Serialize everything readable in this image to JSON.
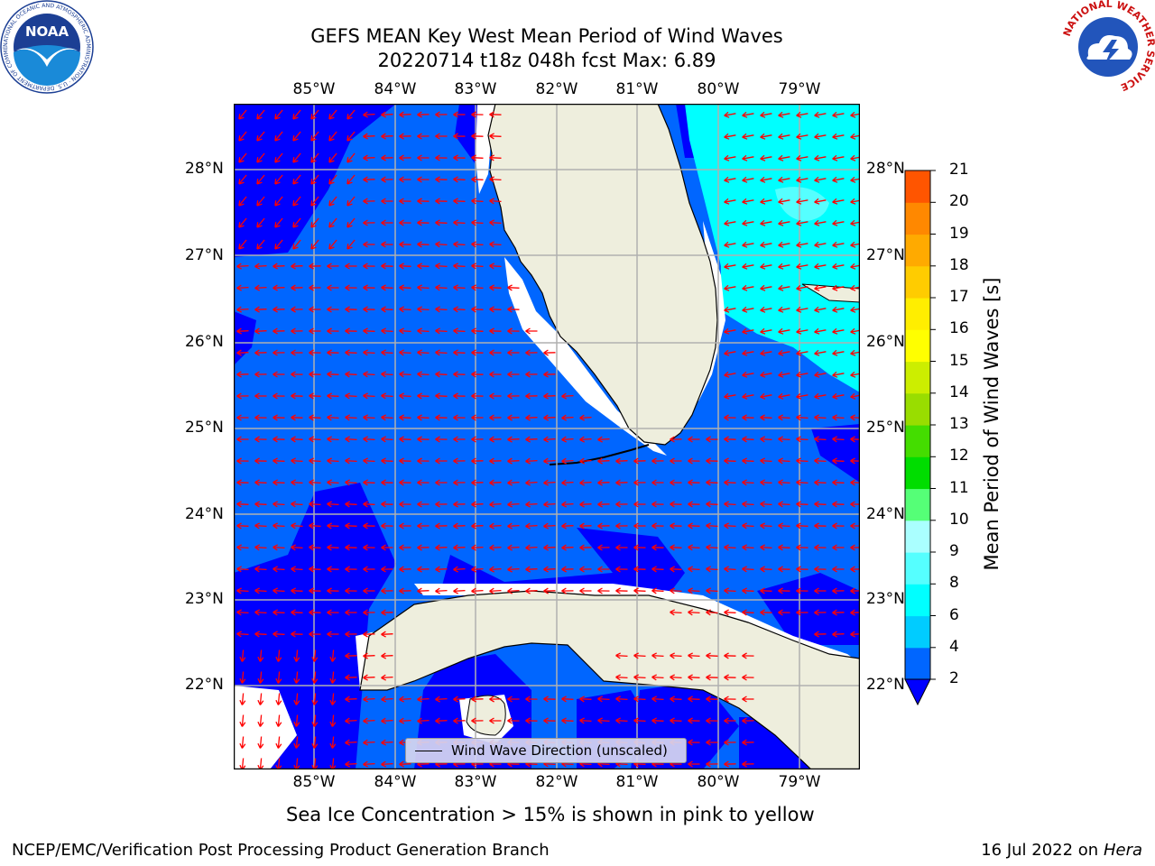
{
  "title": {
    "line1": "GEFS MEAN Key West Mean Period of Wind Waves",
    "line2": "20220714 t18z 048h fcst   Max: 6.89"
  },
  "map": {
    "lon_labels": [
      "85°W",
      "84°W",
      "83°W",
      "82°W",
      "81°W",
      "80°W",
      "79°W"
    ],
    "lat_labels": [
      "28°N",
      "27°N",
      "26°N",
      "25°N",
      "24°N",
      "23°N",
      "22°N"
    ],
    "colors": {
      "land": "#eeeedd",
      "open_no_data": "#ffffff",
      "band_2_4": "#0066ff",
      "band_below_2": "#0000ff",
      "band_4_6": "#00ffff",
      "band_6_8": "#55ffff",
      "arrow": "#ff0000",
      "grid": "#b0b0b0",
      "coast": "#000000"
    }
  },
  "legend": {
    "label": "Wind Wave Direction (unscaled)"
  },
  "colorbar": {
    "label": "Mean Period of Wind Waves [s]",
    "ticks": [
      "2",
      "4",
      "6",
      "8",
      "9",
      "10",
      "11",
      "12",
      "13",
      "14",
      "15",
      "16",
      "17",
      "18",
      "19",
      "20",
      "21"
    ],
    "segment_colors": [
      "#0066ff",
      "#00ccff",
      "#00ffff",
      "#55ffff",
      "#aaffff",
      "#55ff77",
      "#00dd00",
      "#44dd00",
      "#99dd00",
      "#ccee00",
      "#ffff00",
      "#ffee00",
      "#ffcc00",
      "#ffaa00",
      "#ff8800",
      "#ff5500",
      "#ff2200",
      "#ff0000"
    ],
    "extend_low_color": "#0000ff"
  },
  "notes": {
    "sea_ice": "Sea Ice Concentration > 15% is shown in pink to yellow"
  },
  "footer": {
    "left": "NCEP/EMC/Verification Post Processing Product Generation Branch",
    "date": "16 Jul 2022 on ",
    "machine": "Hera"
  },
  "logos": {
    "noaa": {
      "text": "NOAA",
      "ring_text": "NATIONAL OCEANIC AND ATMOSPHERIC ADMINISTRATION · U.S. DEPARTMENT OF COMMERCE"
    },
    "nws": {
      "ring_text": "NATIONAL WEATHER SERVICE"
    }
  }
}
